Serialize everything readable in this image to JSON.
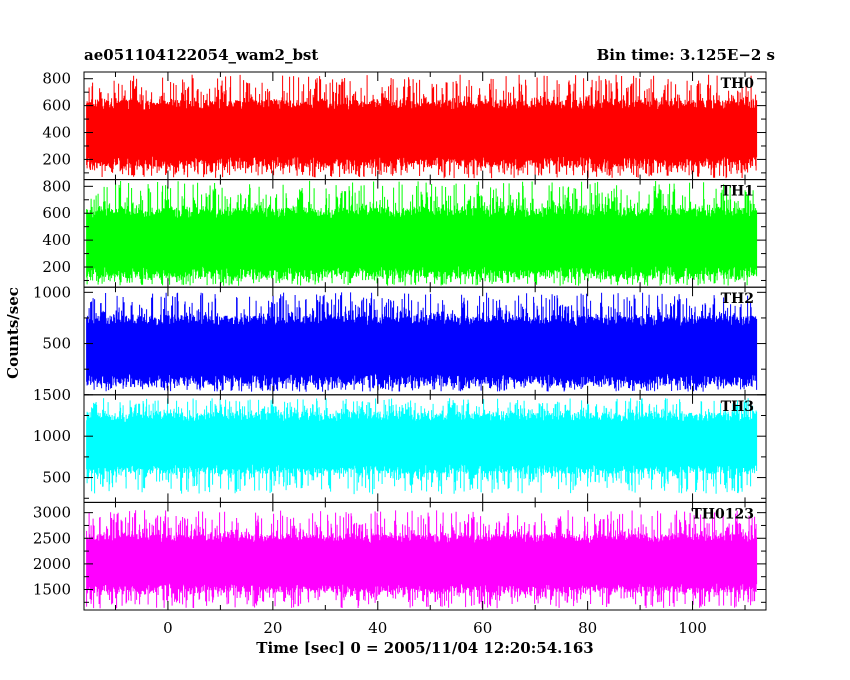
{
  "chart_data": {
    "type": "line",
    "header_left": "ae051104122054_wam2_bst",
    "header_right": "Bin time: 3.125E−2 s",
    "xlabel": "Time [sec] 0 = 2005/11/04 12:20:54.163",
    "ylabel": "Counts/sec",
    "xlim": [
      -16,
      114
    ],
    "x_ticks": [
      0,
      20,
      40,
      60,
      80,
      100
    ],
    "x_tick_labels": [
      "0",
      "20",
      "40",
      "60",
      "80",
      "100"
    ],
    "x_data_range": [
      -15.5,
      112.3
    ],
    "grid": false,
    "panels": [
      {
        "name": "TH0",
        "color": "#ff0000",
        "ylim": [
          50,
          850
        ],
        "ticks": [
          200,
          400,
          600,
          800
        ],
        "tick_labels": [
          "200",
          "400",
          "600",
          "800"
        ],
        "band": [
          150,
          640
        ],
        "spike_range": [
          60,
          830
        ]
      },
      {
        "name": "TH1",
        "color": "#00ff00",
        "ylim": [
          50,
          850
        ],
        "ticks": [
          200,
          400,
          600,
          800
        ],
        "tick_labels": [
          "200",
          "400",
          "600",
          "800"
        ],
        "band": [
          130,
          640
        ],
        "spike_range": [
          60,
          840
        ]
      },
      {
        "name": "TH2",
        "color": "#0000ff",
        "ylim": [
          0,
          1050
        ],
        "ticks": [
          500,
          1000
        ],
        "tick_labels": [
          "500",
          "1000"
        ],
        "band": [
          110,
          770
        ],
        "spike_range": [
          30,
          1000
        ]
      },
      {
        "name": "TH3",
        "color": "#00ffff",
        "ylim": [
          200,
          1500
        ],
        "ticks": [
          500,
          1000,
          1500
        ],
        "tick_labels": [
          "500",
          "1000",
          "1500"
        ],
        "band": [
          550,
          1280
        ],
        "spike_range": [
          300,
          1460
        ]
      },
      {
        "name": "TH0123",
        "color": "#ff00ff",
        "ylim": [
          1100,
          3200
        ],
        "ticks": [
          1500,
          2000,
          2500,
          3000
        ],
        "tick_labels": [
          "1500",
          "2000",
          "2500",
          "3000"
        ],
        "band": [
          1450,
          2580
        ],
        "spike_range": [
          1130,
          3050
        ]
      }
    ]
  }
}
